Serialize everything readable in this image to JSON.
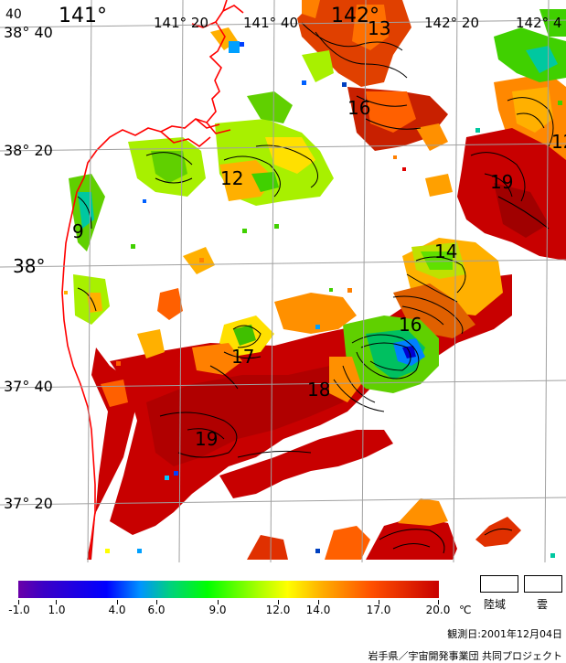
{
  "map": {
    "latitude_labels": [
      {
        "text": "38° 40",
        "key": "lat-38-40"
      },
      {
        "text": "38° 20",
        "key": "lat-38-20"
      },
      {
        "text": "38°",
        "key": "lat-38"
      },
      {
        "text": "37° 40",
        "key": "lat-37-40"
      },
      {
        "text": "37° 20",
        "key": "lat-37-20"
      }
    ],
    "longitude_labels": [
      {
        "text": "40",
        "key": "lon-40"
      },
      {
        "text": "141°",
        "key": "lon-141"
      },
      {
        "text": "141° 20",
        "key": "lon-141-20"
      },
      {
        "text": "141° 40",
        "key": "lon-141-40"
      },
      {
        "text": "142°",
        "key": "lon-142"
      },
      {
        "text": "142° 20",
        "key": "lon-142-20"
      },
      {
        "text": "142° 4",
        "key": "lon-142-4"
      }
    ],
    "contour_labels": [
      {
        "text": "13",
        "key": "contour-13"
      },
      {
        "text": "16",
        "key": "contour-16-north"
      },
      {
        "text": "12",
        "key": "contour-12-east"
      },
      {
        "text": "12",
        "key": "contour-12-west"
      },
      {
        "text": "19",
        "key": "contour-19-east"
      },
      {
        "text": "9",
        "key": "contour-9"
      },
      {
        "text": "14",
        "key": "contour-14"
      },
      {
        "text": "16",
        "key": "contour-16-south"
      },
      {
        "text": "17",
        "key": "contour-17"
      },
      {
        "text": "18",
        "key": "contour-18"
      },
      {
        "text": "19",
        "key": "contour-19-south"
      }
    ],
    "colors": {
      "land_border": "#ff0000",
      "grid": "#a0a0a0",
      "warm": "#c80000",
      "orange": "#ff7800",
      "yellow": "#ffe000",
      "green": "#40e000",
      "cyan": "#00c8a0"
    }
  },
  "legend": {
    "tick_labels": [
      "-1.0",
      "1.0",
      "4.0",
      "6.0",
      "9.0",
      "12.0",
      "14.0",
      "17.0",
      "20.0"
    ],
    "unit": "℃",
    "land_label": "陸域",
    "cloud_label": "雲",
    "observation_date": "観測日:2001年12月04日",
    "credit": "岩手県／宇宙開発事業団 共同プロジェクト"
  }
}
